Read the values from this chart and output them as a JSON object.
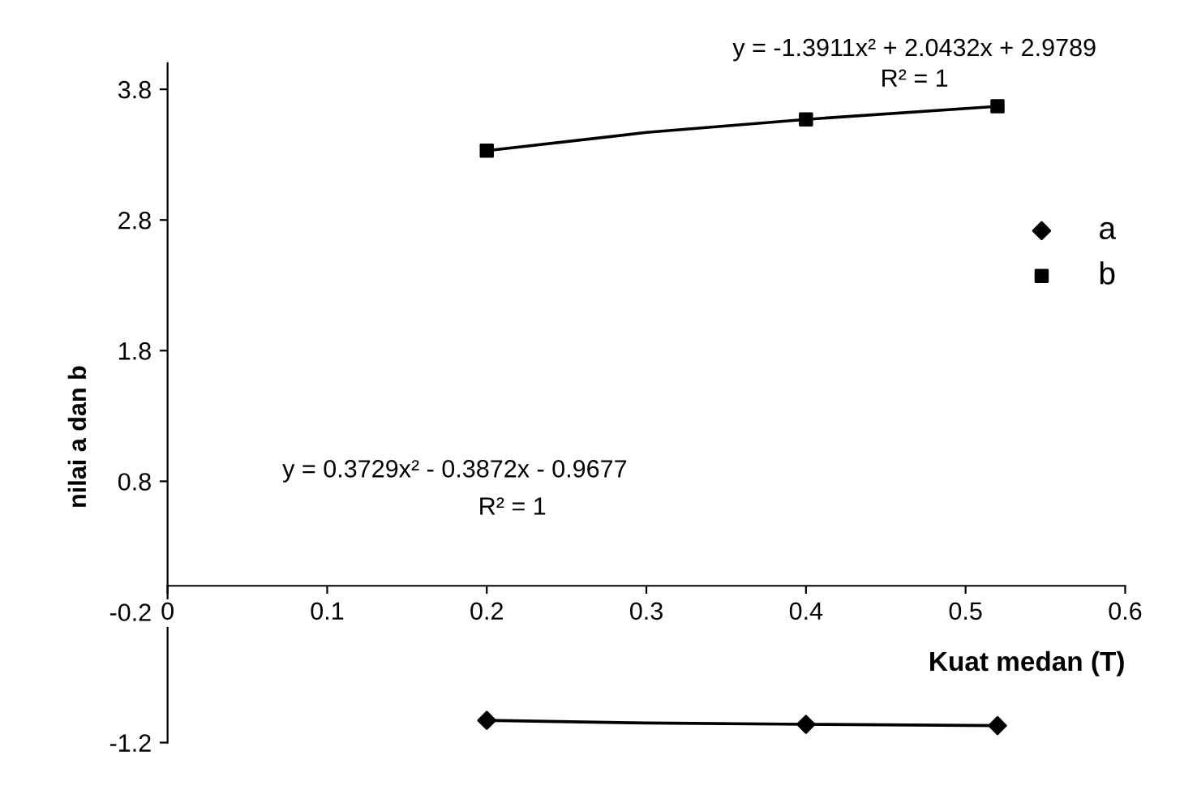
{
  "chart_data": {
    "type": "scatter",
    "xlabel": "Kuat medan (T)",
    "ylabel": "nilai a dan b",
    "xlim": [
      0,
      0.6
    ],
    "xticks": [
      0,
      0.1,
      0.2,
      0.3,
      0.4,
      0.5,
      0.6
    ],
    "ylim": [
      -1.2,
      4.0
    ],
    "yticks": [
      -1.2,
      -0.2,
      0.8,
      1.8,
      2.8,
      3.8
    ],
    "grid": false,
    "legend": "right",
    "series": [
      {
        "name": "a",
        "marker": "diamond",
        "color": "#000000",
        "x": [
          0.2,
          0.4,
          0.52
        ],
        "values": [
          -1.03,
          -1.06,
          -1.07
        ]
      },
      {
        "name": "b",
        "marker": "square",
        "color": "#000000",
        "x": [
          0.2,
          0.4,
          0.52
        ],
        "values": [
          3.33,
          3.57,
          3.67
        ]
      },
      {
        "type": "line",
        "marker": "none",
        "color": "#000000",
        "x": [
          0.2,
          0.3,
          0.4,
          0.52
        ],
        "values": [
          -1.03,
          -1.05,
          -1.06,
          -1.07
        ]
      },
      {
        "type": "line",
        "marker": "none",
        "color": "#000000",
        "x": [
          0.2,
          0.3,
          0.4,
          0.52
        ],
        "values": [
          3.33,
          3.47,
          3.57,
          3.67
        ]
      }
    ],
    "annotations": [
      "y = -1.3911x² + 2.0432x + 2.9789",
      "R² = 1",
      "y = 0.3729x² - 0.3872x - 0.9677",
      "R² = 1"
    ]
  }
}
